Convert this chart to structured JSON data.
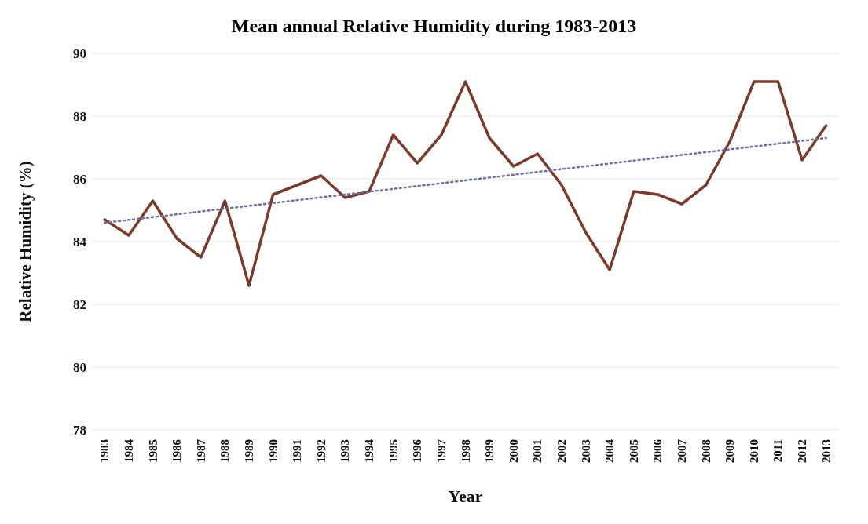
{
  "chart_data": {
    "type": "line",
    "title": "Mean annual Relative Humidity during 1983-2013",
    "xlabel": "Year",
    "ylabel": "Relative Humidity  (%)",
    "x": [
      1983,
      1984,
      1985,
      1986,
      1987,
      1988,
      1989,
      1990,
      1991,
      1992,
      1993,
      1994,
      1995,
      1996,
      1997,
      1998,
      1999,
      2000,
      2001,
      2002,
      2003,
      2004,
      2005,
      2006,
      2007,
      2008,
      2009,
      2010,
      2011,
      2012,
      2013
    ],
    "xlim": [
      1982.5,
      2013.5
    ],
    "xticks": [
      1983,
      1984,
      1985,
      1986,
      1987,
      1988,
      1989,
      1990,
      1991,
      1992,
      1993,
      1994,
      1995,
      1996,
      1997,
      1998,
      1999,
      2000,
      2001,
      2002,
      2003,
      2004,
      2005,
      2006,
      2007,
      2008,
      2009,
      2010,
      2011,
      2012,
      2013
    ],
    "ylim": [
      78,
      90
    ],
    "yticks": [
      78,
      80,
      82,
      84,
      86,
      88,
      90
    ],
    "grid": "y",
    "marker": "none",
    "series": [
      {
        "color": "#7b3b2a",
        "line_style": "solid",
        "values": [
          84.7,
          84.2,
          85.3,
          84.1,
          83.5,
          85.3,
          82.6,
          85.5,
          85.8,
          86.1,
          85.4,
          85.6,
          87.4,
          86.5,
          87.4,
          89.1,
          87.3,
          86.4,
          86.8,
          85.8,
          84.3,
          83.1,
          85.6,
          85.5,
          85.2,
          85.8,
          87.2,
          89.1,
          89.1,
          86.6,
          87.7
        ]
      },
      {
        "type": "line",
        "color": "#6a6fa8",
        "line_style": "dotted",
        "x": [
          1983,
          2013
        ],
        "values": [
          84.6,
          87.3
        ]
      }
    ]
  }
}
